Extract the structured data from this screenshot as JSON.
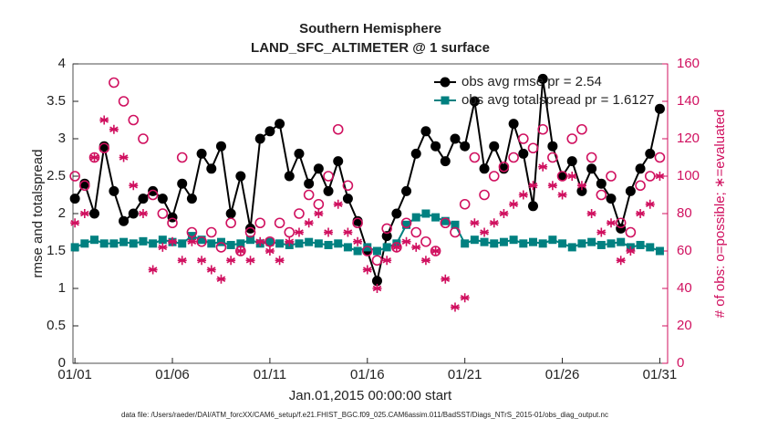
{
  "chart_data": {
    "type": "line",
    "title": "Southern Hemisphere",
    "subtitle": "LAND_SFC_ALTIMETER @ 1 surface",
    "x_label": "Jan.01,2015 00:00:00 start",
    "y_label": "rmse and totalspread",
    "y2_label": "# of obs: o=possible; ∗=evaluated",
    "footnote": "data file: /Users/raeder/DAI/ATM_forcXX/CAM6_setup/f.e21.FHIST_BGC.f09_025.CAM6assim.011/BadSST/Diags_NTrS_2015-01/obs_diag_output.nc",
    "x": [
      0,
      0.5,
      1,
      1.5,
      2,
      2.5,
      3,
      3.5,
      4,
      4.5,
      5,
      5.5,
      6,
      6.5,
      7,
      7.5,
      8,
      8.5,
      9,
      9.5,
      10,
      10.5,
      11,
      11.5,
      12,
      12.5,
      13,
      13.5,
      14,
      14.5,
      15,
      15.5,
      16,
      16.5,
      17,
      17.5,
      18,
      18.5,
      19,
      19.5,
      20,
      20.5,
      21,
      21.5,
      22,
      22.5,
      23,
      23.5,
      24,
      24.5,
      25,
      25.5,
      26,
      26.5,
      27,
      27.5,
      28,
      28.5,
      29,
      29.5,
      30
    ],
    "xlim": [
      -0.1,
      30.4
    ],
    "xticks": [
      {
        "value": 0,
        "label": "01/01"
      },
      {
        "value": 5,
        "label": "01/06"
      },
      {
        "value": 10,
        "label": "01/11"
      },
      {
        "value": 15,
        "label": "01/16"
      },
      {
        "value": 20,
        "label": "01/21"
      },
      {
        "value": 25,
        "label": "01/26"
      },
      {
        "value": 30,
        "label": "01/31"
      }
    ],
    "ylim": [
      0,
      4
    ],
    "yticks": [
      0,
      0.5,
      1,
      1.5,
      2,
      2.5,
      3,
      3.5,
      4
    ],
    "y2lim": [
      0,
      160
    ],
    "y2ticks": [
      0,
      20,
      40,
      60,
      80,
      100,
      120,
      140,
      160
    ],
    "legend": "upper right",
    "series": [
      {
        "name": "obs avg rmse pr = 2.54",
        "color": "#000000",
        "marker": "circle",
        "values": [
          2.2,
          2.4,
          2.0,
          2.9,
          2.3,
          1.9,
          2.0,
          2.2,
          2.3,
          2.2,
          1.95,
          2.4,
          2.2,
          2.8,
          2.6,
          2.9,
          2.0,
          2.5,
          1.8,
          3.0,
          3.1,
          3.2,
          2.5,
          2.8,
          2.4,
          2.6,
          2.3,
          2.7,
          2.2,
          1.9,
          1.5,
          1.1,
          1.7,
          2.0,
          2.3,
          2.8,
          3.1,
          2.9,
          2.7,
          3.0,
          2.9,
          3.5,
          2.6,
          2.9,
          2.6,
          3.2,
          2.8,
          2.1,
          3.8,
          2.9,
          2.5,
          2.7,
          2.3,
          2.6,
          2.4,
          2.2,
          1.8,
          2.3,
          2.6,
          2.8,
          3.4
        ]
      },
      {
        "name": "obs avg totalspread pr = 1.6127",
        "color": "#008080",
        "marker": "square",
        "values": [
          1.55,
          1.6,
          1.65,
          1.6,
          1.6,
          1.62,
          1.6,
          1.63,
          1.6,
          1.65,
          1.62,
          1.6,
          1.7,
          1.65,
          1.6,
          1.62,
          1.58,
          1.6,
          1.65,
          1.6,
          1.62,
          1.6,
          1.58,
          1.6,
          1.62,
          1.6,
          1.58,
          1.6,
          1.55,
          1.5,
          1.55,
          1.5,
          1.55,
          1.6,
          1.85,
          1.95,
          2.0,
          1.95,
          1.9,
          1.85,
          1.6,
          1.65,
          1.62,
          1.6,
          1.62,
          1.65,
          1.6,
          1.62,
          1.6,
          1.65,
          1.6,
          1.55,
          1.6,
          1.62,
          1.58,
          1.6,
          1.62,
          1.55,
          1.58,
          1.55,
          1.5
        ]
      },
      {
        "axis": "y2",
        "color": "#d0105f",
        "marker": "open-circle",
        "values": [
          100,
          95,
          110,
          115,
          150,
          140,
          130,
          120,
          90,
          80,
          75,
          110,
          70,
          65,
          70,
          62,
          75,
          60,
          70,
          75,
          65,
          75,
          70,
          80,
          90,
          85,
          100,
          125,
          95,
          75,
          60,
          55,
          72,
          62,
          75,
          70,
          65,
          60,
          75,
          70,
          85,
          110,
          90,
          100,
          105,
          110,
          120,
          115,
          125,
          110,
          100,
          120,
          125,
          110,
          90,
          100,
          75,
          70,
          95,
          100,
          110
        ]
      },
      {
        "axis": "y2",
        "color": "#d0105f",
        "marker": "asterisk",
        "values": [
          75,
          80,
          110,
          130,
          125,
          110,
          95,
          80,
          50,
          62,
          65,
          55,
          65,
          55,
          50,
          45,
          55,
          60,
          55,
          65,
          60,
          55,
          65,
          70,
          75,
          80,
          70,
          85,
          70,
          65,
          50,
          40,
          55,
          62,
          65,
          62,
          55,
          60,
          45,
          30,
          35,
          75,
          70,
          75,
          80,
          85,
          90,
          95,
          105,
          95,
          90,
          100,
          95,
          80,
          70,
          75,
          55,
          60,
          80,
          85,
          100
        ]
      }
    ]
  }
}
